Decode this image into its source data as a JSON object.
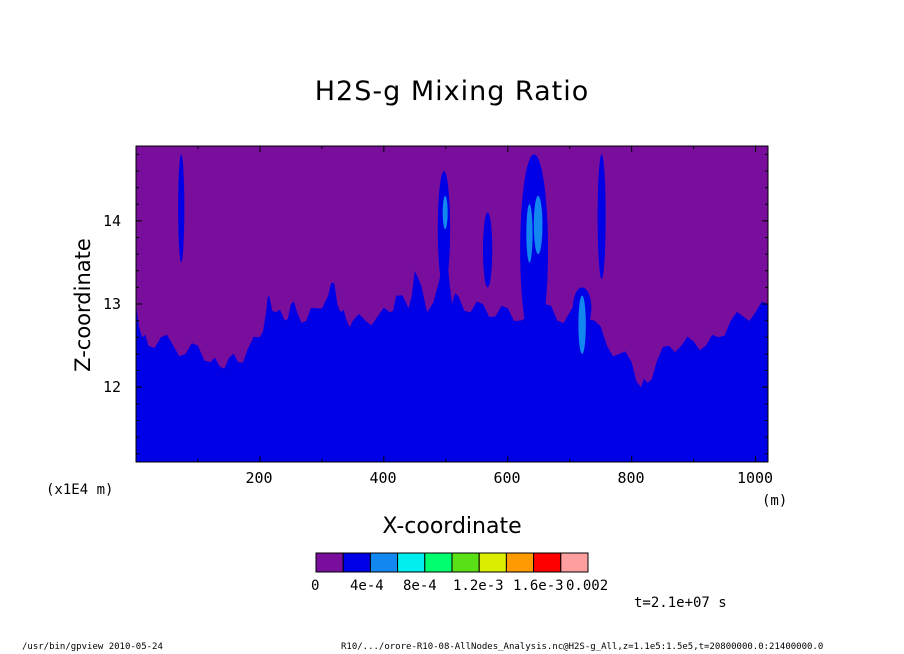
{
  "chart_data": {
    "type": "heatmap",
    "title": "H2S-g Mixing Ratio",
    "xlabel": "X-coordinate",
    "ylabel": "Z-coordinate",
    "x_unit_left": "(x1E4 m)",
    "x_unit_right": "(m)",
    "xlim": [
      0,
      1020
    ],
    "ylim": [
      11.1,
      14.9
    ],
    "x_ticks": [
      "200",
      "400",
      "600",
      "800",
      "1000"
    ],
    "x_tick_values": [
      200,
      400,
      600,
      800,
      1000
    ],
    "y_ticks": [
      "14",
      "13",
      "12"
    ],
    "y_tick_values": [
      14,
      13,
      12
    ],
    "boundary": {
      "x": [
        0,
        10,
        20,
        40,
        60,
        80,
        100,
        120,
        135,
        150,
        165,
        180,
        200,
        210,
        215,
        225,
        240,
        250,
        260,
        275,
        290,
        310,
        320,
        330,
        340,
        350,
        370,
        390,
        410,
        420,
        440,
        450,
        470,
        490,
        500,
        510,
        520,
        540,
        560,
        580,
        600,
        620,
        640,
        660,
        680,
        700,
        720,
        740,
        760,
        780,
        800,
        815,
        825,
        840,
        860,
        880,
        900,
        920,
        940,
        960,
        980,
        1000,
        1020
      ],
      "z": [
        13.0,
        12.6,
        12.5,
        12.6,
        12.5,
        12.4,
        12.5,
        12.3,
        12.25,
        12.35,
        12.3,
        12.45,
        12.6,
        12.9,
        13.1,
        12.9,
        12.8,
        13.0,
        12.9,
        12.8,
        12.95,
        13.1,
        13.25,
        12.9,
        12.8,
        12.8,
        12.8,
        12.85,
        12.9,
        13.1,
        12.95,
        13.4,
        12.9,
        13.3,
        13.8,
        13.0,
        13.1,
        12.9,
        13.0,
        12.85,
        12.95,
        12.8,
        12.7,
        13.0,
        12.8,
        12.9,
        13.0,
        12.8,
        12.5,
        12.4,
        12.3,
        12.0,
        12.05,
        12.3,
        12.5,
        12.5,
        12.55,
        12.5,
        12.6,
        12.8,
        12.85,
        12.9,
        13.0
      ]
    },
    "plumes": [
      {
        "x0": 68,
        "x1": 78,
        "z0": 13.5,
        "z1": 14.8,
        "level": 1
      },
      {
        "x0": 487,
        "x1": 507,
        "z0": 13.2,
        "z1": 14.6,
        "level": 1
      },
      {
        "x0": 495,
        "x1": 503,
        "z0": 13.9,
        "z1": 14.3,
        "level": 2
      },
      {
        "x0": 620,
        "x1": 665,
        "z0": 12.5,
        "z1": 14.8,
        "level": 1
      },
      {
        "x0": 630,
        "x1": 640,
        "z0": 13.5,
        "z1": 14.2,
        "level": 2
      },
      {
        "x0": 642,
        "x1": 656,
        "z0": 13.6,
        "z1": 14.3,
        "level": 2
      },
      {
        "x0": 705,
        "x1": 735,
        "z0": 12.7,
        "z1": 13.2,
        "level": 1
      },
      {
        "x0": 714,
        "x1": 726,
        "z0": 12.4,
        "z1": 13.1,
        "level": 2
      },
      {
        "x0": 745,
        "x1": 758,
        "z0": 13.3,
        "z1": 14.8,
        "level": 1
      },
      {
        "x0": 560,
        "x1": 575,
        "z0": 13.2,
        "z1": 14.1,
        "level": 1
      }
    ],
    "colorbar": {
      "colors": [
        "#7a0e9c",
        "#0000e6",
        "#1287f0",
        "#00eeee",
        "#00ff6e",
        "#5ae016",
        "#dcee00",
        "#ff9a00",
        "#ff0000",
        "#ff9e9e"
      ],
      "labels": [
        "0",
        "4e-4",
        "8e-4",
        "1.2e-3",
        "1.6e-3",
        "0.002"
      ]
    }
  },
  "time_label": "t=2.1e+07 s",
  "footer_left": "/usr/bin/gpview   2010-05-24",
  "footer_right": "R10/.../orore-R10-08-AllNodes_Analysis.nc@H2S-g_All,z=1.1e5:1.5e5,t=20800000.0:21400000.0"
}
